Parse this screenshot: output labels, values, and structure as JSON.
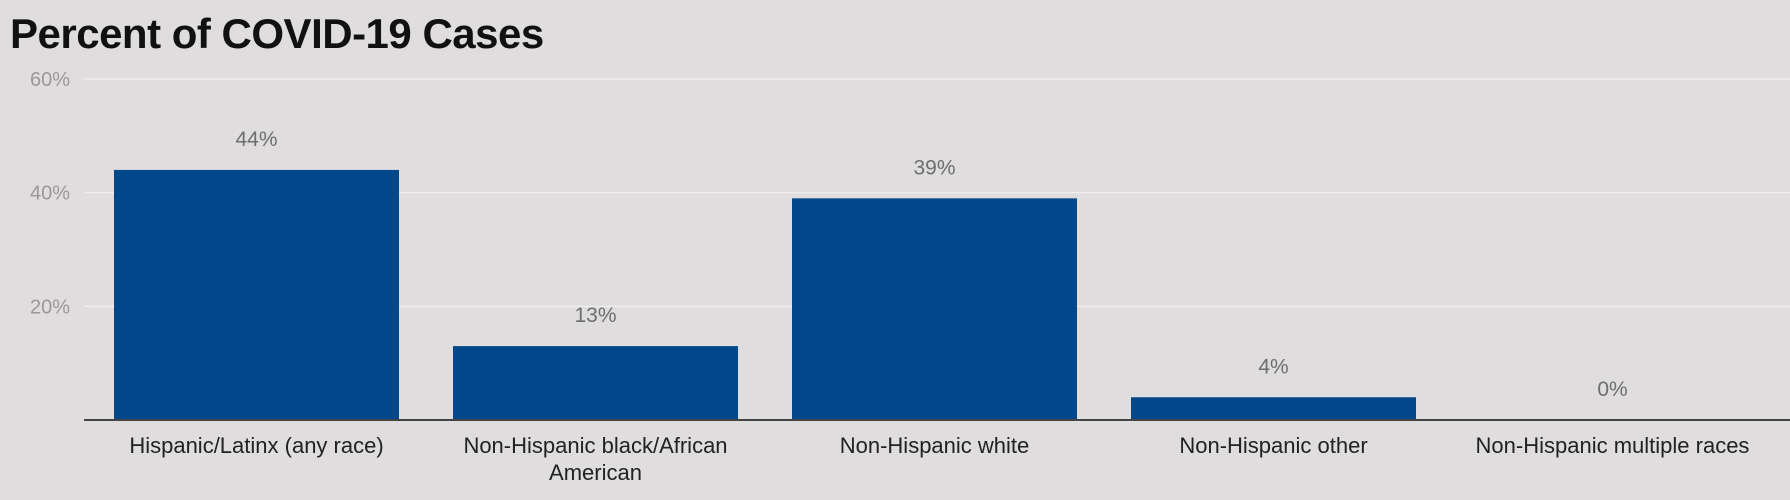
{
  "chart_data": {
    "type": "bar",
    "title": "Percent of COVID-19 Cases",
    "categories": [
      [
        "Hispanic/Latinx (any race)"
      ],
      [
        "Non-Hispanic black/African",
        "American"
      ],
      [
        "Non-Hispanic white"
      ],
      [
        "Non-Hispanic other"
      ],
      [
        "Non-Hispanic multiple races"
      ]
    ],
    "values": [
      44,
      13,
      39,
      4,
      0
    ],
    "data_labels": [
      "44%",
      "13%",
      "39%",
      "4%",
      "0%"
    ],
    "ylim": [
      0,
      60
    ],
    "yticks": [
      20,
      40,
      60
    ],
    "ytick_labels": [
      "20%",
      "40%",
      "60%"
    ],
    "xlabel": "",
    "ylabel": "",
    "grid": true,
    "legend": "none"
  },
  "colors": {
    "bar": "#00488a",
    "grid": "#efeded",
    "axis": "#444444",
    "tick_text": "#9a9898",
    "data_label_text": "#6e6e6e",
    "category_text": "#222222",
    "background": "#dfdddd"
  }
}
